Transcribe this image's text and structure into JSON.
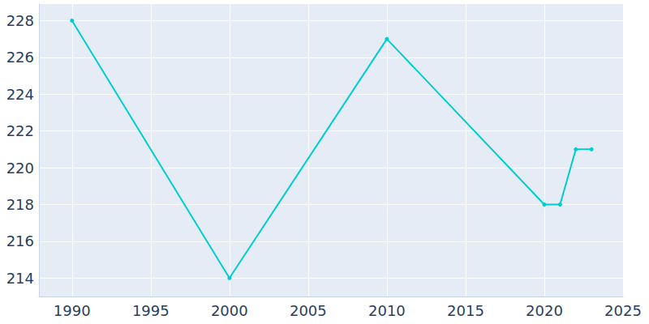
{
  "chart_data": {
    "type": "line",
    "x": [
      1990,
      2000,
      2010,
      2020,
      2021,
      2022,
      2023
    ],
    "values": [
      228,
      214,
      227,
      218,
      218,
      221,
      221
    ],
    "color": "#00cdcd",
    "marker": "circle",
    "xlim": [
      1987.9,
      2025
    ],
    "xticks": [
      1990,
      1995,
      2000,
      2005,
      2010,
      2015,
      2020,
      2025
    ],
    "ylim": [
      213,
      228.9
    ],
    "yticks": [
      214,
      216,
      218,
      220,
      222,
      224,
      226,
      228
    ],
    "grid": true
  }
}
